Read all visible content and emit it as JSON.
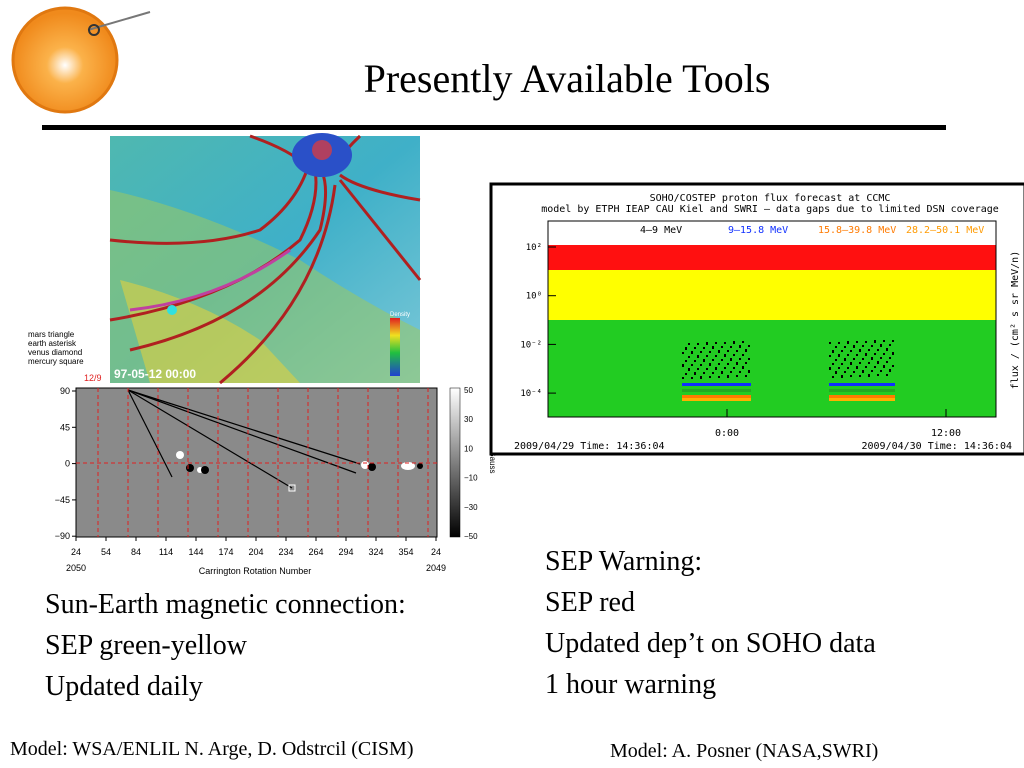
{
  "title": "Presently Available Tools",
  "left_panel": {
    "model_image": {
      "timestamp": "97-05-12 00:00",
      "legend_title": "Density"
    },
    "legend_notes": [
      "mars triangle",
      "earth asterisk",
      "venus diamond",
      "mercury square"
    ],
    "magnetogram": {
      "date_label": "12/9",
      "yticks": [
        "90",
        "45",
        "0",
        "−45",
        "−90"
      ],
      "xticks": [
        "24",
        "54",
        "84",
        "114",
        "144",
        "174",
        "204",
        "234",
        "264",
        "294",
        "324",
        "354",
        "24"
      ],
      "left_rotation": "2050",
      "right_rotation": "2049",
      "xlabel": "Carrington Rotation Number",
      "colorbar_ticks": [
        "50",
        "30",
        "10",
        "−10",
        "−30",
        "−50"
      ],
      "colorbar_label": "Gauss"
    },
    "caption": [
      "Sun-Earth magnetic connection:",
      "SEP green-yellow",
      "Updated daily"
    ],
    "credit": "Model: WSA/ENLIL N. Arge, D. Odstrcil (CISM)"
  },
  "right_panel": {
    "forecast_plot": {
      "title_lines": [
        "SOHO/COSTEP proton flux forecast at CCMC",
        "model by ETPH IEAP CAU Kiel and SWRI — data gaps due to limited DSN coverage"
      ],
      "legend": [
        "4–9 MeV",
        "9–15.8 MeV",
        "15.8–39.8 MeV",
        "28.2–50.1 MeV"
      ],
      "yticks": [
        "10²",
        "10⁰",
        "10⁻²",
        "10⁻⁴"
      ],
      "xticks": [
        "0:00",
        "12:00"
      ],
      "ylabel": "flux / (cm² s sr MeV/n)",
      "footer_left": "2009/04/29 Time: 14:36:04",
      "footer_right": "2009/04/30 Time: 14:36:04"
    },
    "caption": [
      "SEP Warning:",
      "SEP red",
      "Updated dep’t on SOHO data",
      "1 hour warning"
    ],
    "credit": "Model: A. Posner (NASA,SWRI)"
  }
}
